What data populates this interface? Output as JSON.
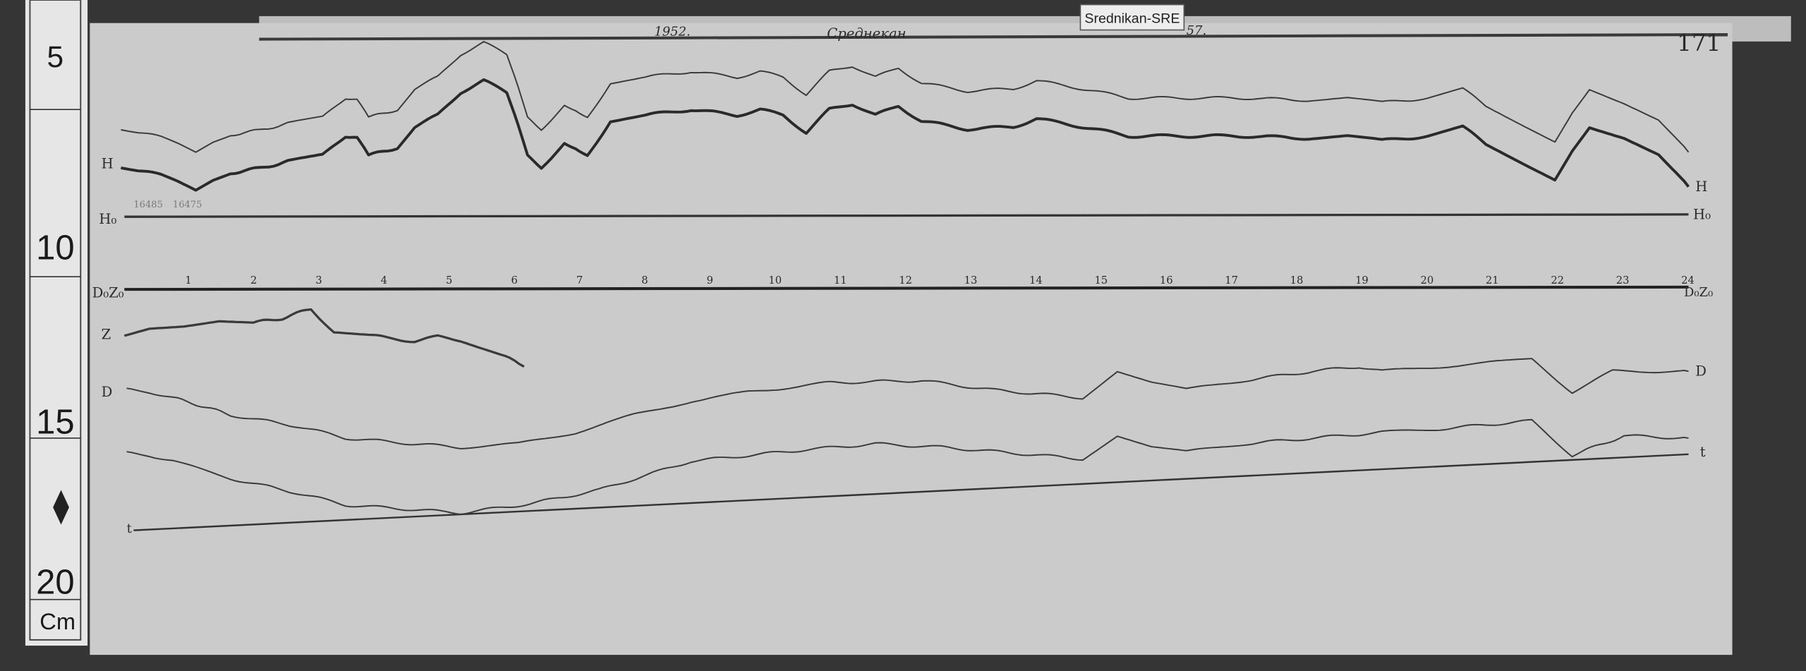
{
  "header": {
    "date_month": "",
    "year": "1952.",
    "station_handwritten": "Среднекан",
    "suffix": "57.",
    "station_tag": "Srednikan-SRE",
    "sheet_number": "171"
  },
  "ruler": {
    "marks": [
      "5",
      "10",
      "15",
      "20"
    ],
    "unit": "Cm",
    "diamond_icon": "diamond-icon"
  },
  "trace_labels": {
    "H_left": "H",
    "H0_left": "H₀",
    "D0Z0_left": "D₀Z₀",
    "Z_left": "Z",
    "D_left": "D",
    "t_left": "t",
    "H_right": "H",
    "H0_right": "H₀",
    "D0Z0_right": "D₀Z₀",
    "D_right": "D",
    "t_right": "t"
  },
  "annotations": {
    "value_1": "16485",
    "value_2": "16475"
  },
  "hours": [
    "1",
    "2",
    "3",
    "4",
    "5",
    "6",
    "7",
    "8",
    "9",
    "10",
    "11",
    "12",
    "13",
    "14",
    "15",
    "16",
    "17",
    "18",
    "19",
    "20",
    "21",
    "22",
    "23",
    "24"
  ],
  "colors": {
    "paper": "#cbcbcb",
    "ink": "#2b2b2b",
    "background": "#353535",
    "ruler": "#e6e6e6"
  }
}
